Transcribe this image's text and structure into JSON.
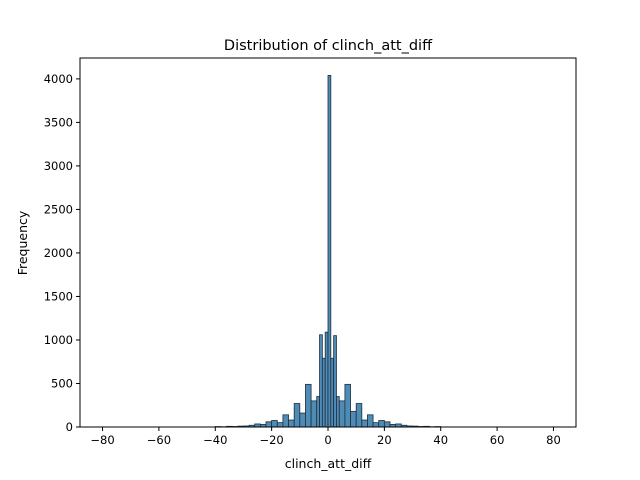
{
  "chart_data": {
    "type": "bar",
    "title": "Distribution of clinch_att_diff",
    "xlabel": "clinch_att_diff",
    "ylabel": "Frequency",
    "xlim": [
      -88,
      88
    ],
    "ylim": [
      0,
      4240
    ],
    "xticks": [
      -80,
      -60,
      -40,
      -20,
      0,
      20,
      40,
      60,
      80
    ],
    "xtick_labels": [
      "−80",
      "−60",
      "−40",
      "−20",
      "0",
      "20",
      "40",
      "60",
      "80"
    ],
    "yticks": [
      0,
      500,
      1000,
      1500,
      2000,
      2500,
      3000,
      3500,
      4000
    ],
    "ytick_labels": [
      "0",
      "500",
      "1000",
      "1500",
      "2000",
      "2500",
      "3000",
      "3500",
      "4000"
    ],
    "grid": false,
    "bar_color": "#4f8cb5",
    "edge_color": "#1f2f3f",
    "bins": {
      "x_start": [
        -40,
        -38,
        -36,
        -34,
        -32,
        -30,
        -28,
        -26,
        -24,
        -22,
        -20,
        -18,
        -16,
        -14,
        -12,
        -10,
        -8,
        -6,
        -4,
        -3,
        -2,
        -1,
        0,
        1,
        2,
        3,
        4,
        6,
        8,
        10,
        12,
        14,
        16,
        18,
        20,
        22,
        24,
        26,
        28,
        30,
        32,
        34,
        36,
        38
      ],
      "x_end": [
        -38,
        -36,
        -34,
        -32,
        -30,
        -28,
        -26,
        -24,
        -22,
        -20,
        -18,
        -16,
        -14,
        -12,
        -10,
        -8,
        -6,
        -4,
        -3,
        -2,
        -1,
        0,
        1,
        2,
        3,
        4,
        6,
        8,
        10,
        12,
        14,
        16,
        18,
        20,
        22,
        24,
        26,
        28,
        30,
        32,
        34,
        36,
        38,
        40
      ],
      "counts": [
        5,
        3,
        8,
        6,
        10,
        12,
        20,
        35,
        30,
        60,
        75,
        50,
        140,
        80,
        270,
        160,
        490,
        300,
        350,
        1060,
        790,
        1090,
        4040,
        790,
        1050,
        350,
        300,
        490,
        180,
        270,
        80,
        140,
        50,
        75,
        60,
        30,
        35,
        20,
        12,
        10,
        6,
        8,
        3,
        5
      ]
    }
  }
}
